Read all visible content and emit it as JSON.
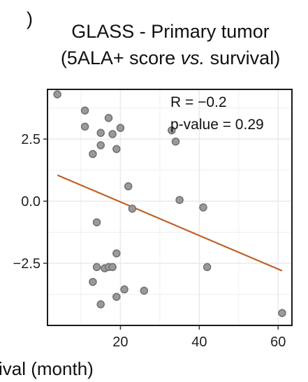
{
  "chart_data": {
    "type": "scatter",
    "title_line1": "GLASS - Primary tumor",
    "title_line2_pre": "(5ALA+ score ",
    "title_line2_em": "vs.",
    "title_line2_post": " survival)",
    "panel_mark": ")",
    "xlabel": "ival (month)",
    "ylabel": "",
    "annotations": {
      "r": "R = −0.2",
      "p": "p-value = 0.29"
    },
    "xlim": [
      1.5,
      63.5
    ],
    "ylim": [
      -5.0,
      4.5
    ],
    "x_ticks": [
      20,
      40,
      60
    ],
    "x_tick_labels": [
      "20",
      "40",
      "60"
    ],
    "y_ticks": [
      2.5,
      0.0,
      -2.5
    ],
    "y_tick_labels": [
      "2.5",
      "0.0",
      "−2.5"
    ],
    "grid": true,
    "points": [
      {
        "x": 4,
        "y": 4.3
      },
      {
        "x": 11,
        "y": 3.65
      },
      {
        "x": 11,
        "y": 3.0
      },
      {
        "x": 13,
        "y": 1.9
      },
      {
        "x": 15,
        "y": 2.75
      },
      {
        "x": 15,
        "y": 2.25
      },
      {
        "x": 17,
        "y": 3.35
      },
      {
        "x": 18,
        "y": 2.7
      },
      {
        "x": 19,
        "y": 2.1
      },
      {
        "x": 20,
        "y": 2.95
      },
      {
        "x": 22,
        "y": 0.6
      },
      {
        "x": 23,
        "y": -0.3
      },
      {
        "x": 33,
        "y": 2.85
      },
      {
        "x": 34,
        "y": 2.4
      },
      {
        "x": 35,
        "y": 0.05
      },
      {
        "x": 41,
        "y": -0.25
      },
      {
        "x": 14,
        "y": -0.85
      },
      {
        "x": 19,
        "y": -2.1
      },
      {
        "x": 14,
        "y": -2.65
      },
      {
        "x": 16,
        "y": -2.7
      },
      {
        "x": 17,
        "y": -2.65
      },
      {
        "x": 18,
        "y": -2.65
      },
      {
        "x": 13,
        "y": -3.25
      },
      {
        "x": 21,
        "y": -3.55
      },
      {
        "x": 26,
        "y": -3.6
      },
      {
        "x": 19,
        "y": -3.85
      },
      {
        "x": 15,
        "y": -4.15
      },
      {
        "x": 42,
        "y": -2.65
      },
      {
        "x": 61,
        "y": -4.5
      }
    ],
    "trend_line": {
      "x": [
        4,
        61
      ],
      "y": [
        1.05,
        -2.8
      ]
    },
    "colors": {
      "point_fill": "#9a9a9a",
      "point_stroke": "#707070",
      "trend": "#c0602a",
      "grid": "#ebebeb",
      "frame": "#1a1a1a"
    }
  }
}
